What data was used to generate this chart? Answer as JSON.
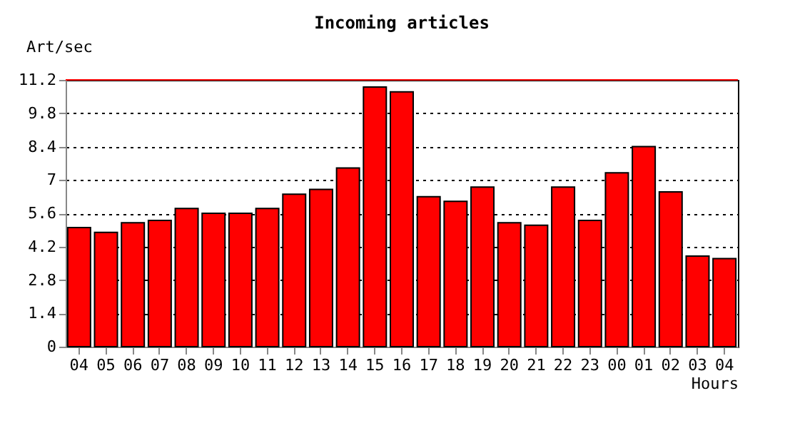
{
  "chart_data": {
    "type": "bar",
    "title": "Incoming articles",
    "xlabel": "Hours",
    "ylabel": "Art/sec",
    "categories": [
      "04",
      "05",
      "06",
      "07",
      "08",
      "09",
      "10",
      "11",
      "12",
      "13",
      "14",
      "15",
      "16",
      "17",
      "18",
      "19",
      "20",
      "21",
      "22",
      "23",
      "00",
      "01",
      "02",
      "03",
      "04"
    ],
    "values": [
      5.0,
      4.8,
      5.2,
      5.3,
      5.8,
      5.6,
      5.6,
      5.8,
      6.4,
      6.6,
      7.5,
      10.9,
      10.7,
      6.3,
      6.1,
      6.7,
      5.2,
      5.1,
      6.7,
      5.3,
      7.3,
      8.4,
      6.5,
      3.8,
      3.7
    ],
    "color": "#ff0000",
    "ylim": [
      0,
      11.2
    ],
    "yticks": [
      0,
      1.4,
      2.8,
      4.2,
      5.6,
      7,
      8.4,
      9.8,
      11.2
    ],
    "ref_lines": [
      {
        "axis": "y",
        "value": 11.2,
        "color": "#ff0000",
        "line_style": "solid"
      }
    ],
    "grid": "y"
  }
}
